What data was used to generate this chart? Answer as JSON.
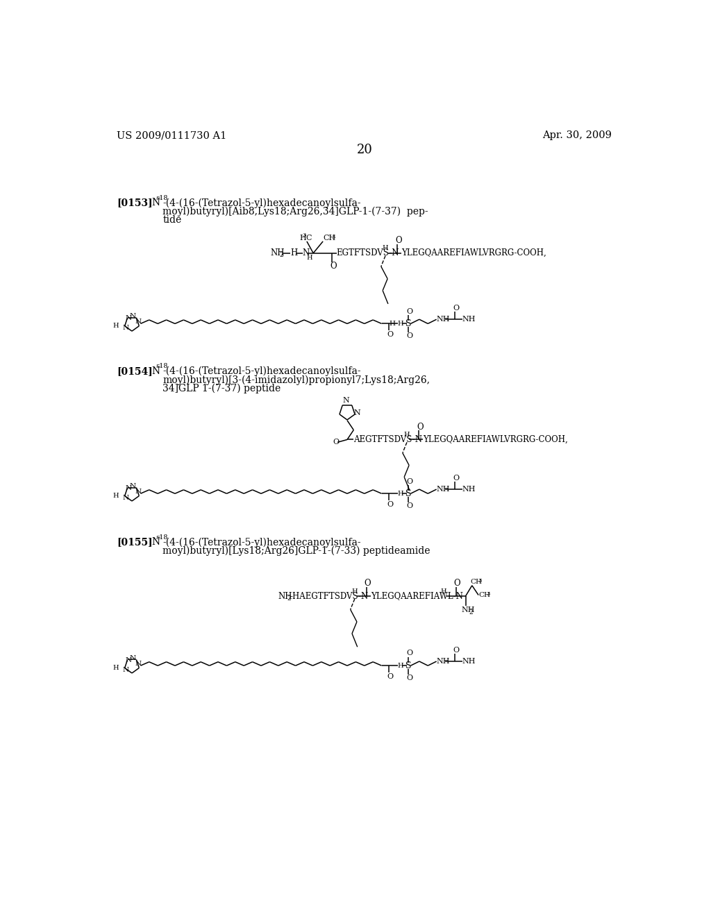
{
  "page_number": "20",
  "header_left": "US 2009/0111730 A1",
  "header_right": "Apr. 30, 2009",
  "background_color": "#ffffff",
  "text_color": "#000000",
  "sec1_ref": "[0153]",
  "sec1_line1": "-(4-(16-(Tetrazol-5-yl)hexadecanoylsulfa-",
  "sec1_line2": "moyl)butyryl)[Aib8,Lys18;Arg26,34]GLP-1-(7-37)  pep-",
  "sec1_line3": "tide",
  "sec2_ref": "[0154]",
  "sec2_line1": "-(4-(16-(Tetrazol-5-yl)hexadecanoylsulfa-",
  "sec2_line2": "moyl)butyryl)[3-(4-imidazolyl)propionyl7;Lys18;Arg26,",
  "sec2_line3": "34]GLP 1-(7-37) peptide",
  "sec3_ref": "[0155]",
  "sec3_line1": "-(4-(16-(Tetrazol-5-yl)hexadecanoylsulfa-",
  "sec3_line2": "moyl)butyryl)[Lys18;Arg26]GLP-1-(7-33) peptideamide"
}
